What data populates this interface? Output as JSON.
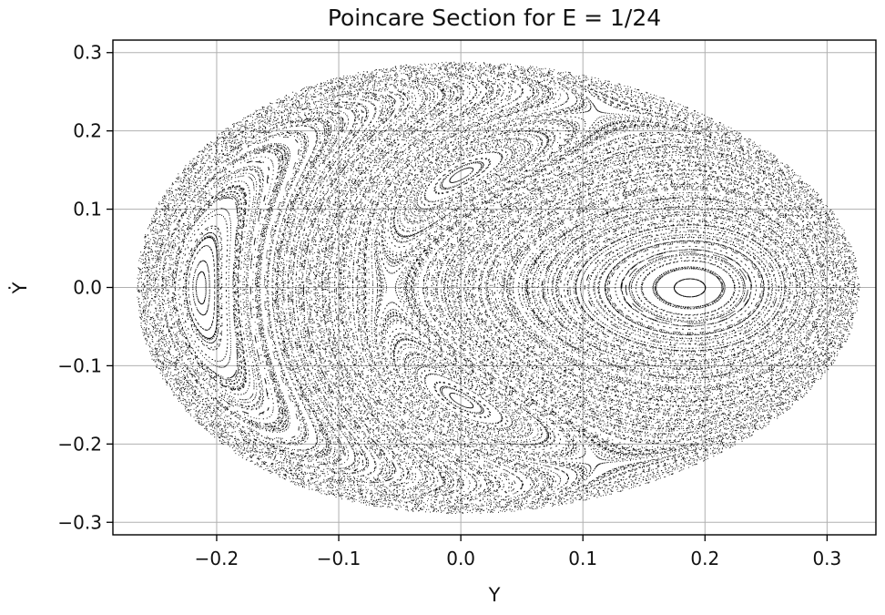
{
  "chart_data": {
    "type": "scatter",
    "title": "Poincare Section for E = 1/24",
    "xlabel": "Y",
    "ylabel": "Ẏ",
    "xlim": [
      -0.285,
      0.34
    ],
    "ylim": [
      -0.316,
      0.316
    ],
    "xticks": [
      -0.2,
      -0.1,
      0.0,
      0.1,
      0.2,
      0.3
    ],
    "xtick_labels": [
      "−0.2",
      "−0.1",
      "0.0",
      "0.1",
      "0.2",
      "0.3"
    ],
    "yticks": [
      0.3,
      0.2,
      0.1,
      0.0,
      -0.1,
      -0.2,
      -0.3
    ],
    "ytick_labels": [
      "0.3",
      "0.2",
      "0.1",
      "0.0",
      "−0.1",
      "−0.2",
      "−0.3"
    ],
    "grid": true,
    "marker_color": "#000000",
    "boundary": {
      "y_min": -0.262,
      "y_max": 0.328,
      "ydot_max": 0.289,
      "ydot_at_y0": 0.2887
    },
    "islands": [
      {
        "center_y": -0.212,
        "center_ydot": 0.0,
        "radius_y": 0.03,
        "radius_ydot": 0.105
      },
      {
        "center_y": 0.0,
        "center_ydot": 0.148,
        "radius_y": 0.08,
        "radius_ydot": 0.06
      },
      {
        "center_y": 0.0,
        "center_ydot": -0.148,
        "radius_y": 0.08,
        "radius_ydot": 0.06
      },
      {
        "center_y": 0.188,
        "center_ydot": 0.0,
        "radius_y": 0.155,
        "radius_ydot": 0.145
      }
    ],
    "hyperbolic_points": [
      {
        "y": -0.06,
        "ydot": 0.0
      },
      {
        "y": 0.115,
        "ydot": 0.205
      },
      {
        "y": 0.115,
        "ydot": -0.205
      }
    ]
  }
}
